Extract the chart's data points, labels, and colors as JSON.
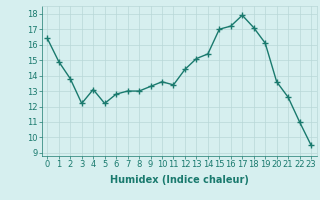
{
  "x": [
    0,
    1,
    2,
    3,
    4,
    5,
    6,
    7,
    8,
    9,
    10,
    11,
    12,
    13,
    14,
    15,
    16,
    17,
    18,
    19,
    20,
    21,
    22,
    23
  ],
  "y": [
    16.4,
    14.9,
    13.8,
    12.2,
    13.1,
    12.2,
    12.8,
    13.0,
    13.0,
    13.3,
    13.6,
    13.4,
    14.4,
    15.1,
    15.4,
    17.0,
    17.2,
    17.9,
    17.1,
    16.1,
    13.6,
    12.6,
    11.0,
    9.5
  ],
  "line_color": "#1a7a6e",
  "marker": "+",
  "marker_size": 4,
  "xlabel": "Humidex (Indice chaleur)",
  "ylabel_ticks": [
    9,
    10,
    11,
    12,
    13,
    14,
    15,
    16,
    17,
    18
  ],
  "xlim": [
    -0.5,
    23.5
  ],
  "ylim": [
    8.8,
    18.5
  ],
  "bg_color": "#d6efef",
  "grid_color": "#b8d8d8",
  "line_width": 1.0,
  "tick_color": "#1a7a6e",
  "label_color": "#1a7a6e",
  "font_size_xlabel": 7,
  "font_size_ticks": 6,
  "xlabel_fontweight": "bold"
}
